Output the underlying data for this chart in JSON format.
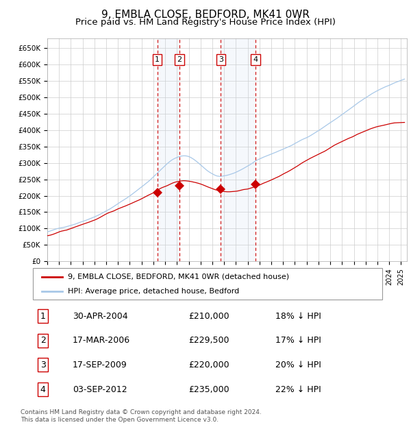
{
  "title": "9, EMBLA CLOSE, BEDFORD, MK41 0WR",
  "subtitle": "Price paid vs. HM Land Registry's House Price Index (HPI)",
  "title_fontsize": 11,
  "subtitle_fontsize": 9.5,
  "ylim": [
    0,
    680000
  ],
  "yticks": [
    0,
    50000,
    100000,
    150000,
    200000,
    250000,
    300000,
    350000,
    400000,
    450000,
    500000,
    550000,
    600000,
    650000
  ],
  "background_color": "#ffffff",
  "grid_color": "#cccccc",
  "plot_bg_color": "#ffffff",
  "hpi_line_color": "#a8c8e8",
  "price_line_color": "#cc0000",
  "sale_marker_color": "#cc0000",
  "dashed_line_color": "#cc0000",
  "shade_color": "#ccddf0",
  "transactions": [
    {
      "id": 1,
      "date_label": "30-APR-2004",
      "date_x": 2004.33,
      "price": 210000,
      "pct": "18%",
      "direction": "↓"
    },
    {
      "id": 2,
      "date_label": "17-MAR-2006",
      "date_x": 2006.21,
      "price": 229500,
      "pct": "17%",
      "direction": "↓"
    },
    {
      "id": 3,
      "date_label": "17-SEP-2009",
      "date_x": 2009.71,
      "price": 220000,
      "pct": "20%",
      "direction": "↓"
    },
    {
      "id": 4,
      "date_label": "03-SEP-2012",
      "date_x": 2012.67,
      "price": 235000,
      "pct": "22%",
      "direction": "↓"
    }
  ],
  "legend_house_label": "9, EMBLA CLOSE, BEDFORD, MK41 0WR (detached house)",
  "legend_hpi_label": "HPI: Average price, detached house, Bedford",
  "footer": "Contains HM Land Registry data © Crown copyright and database right 2024.\nThis data is licensed under the Open Government Licence v3.0.",
  "xmin": 1995,
  "xmax": 2025.5
}
